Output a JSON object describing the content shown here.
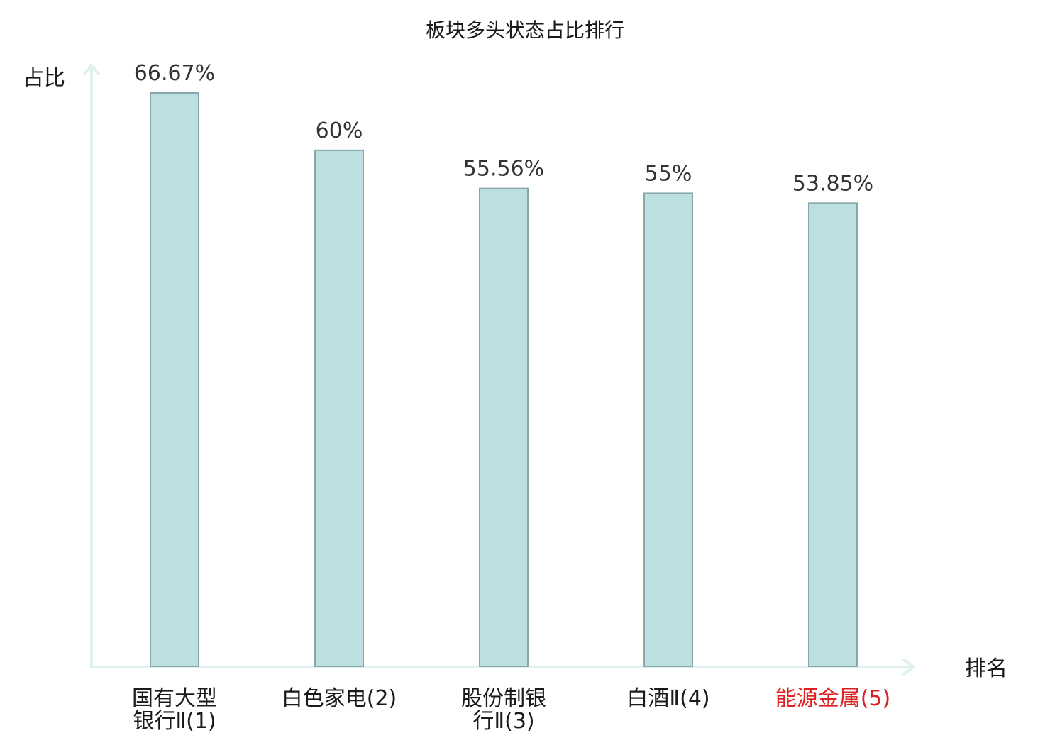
{
  "chart_data": {
    "type": "bar",
    "title": "板块多头状态占比排行",
    "ylabel": "占比",
    "xlabel": "排名",
    "ylim": [
      0,
      70
    ],
    "grid": false,
    "categories": [
      [
        "国有大型",
        "银行Ⅱ(1)"
      ],
      [
        "白色家电(2)"
      ],
      [
        "股份制银",
        "行Ⅱ(3)"
      ],
      [
        "白酒Ⅱ(4)"
      ],
      [
        "能源金属(5)"
      ]
    ],
    "values": [
      66.67,
      60,
      55.56,
      55,
      53.85
    ],
    "value_labels": [
      "66.67%",
      "60%",
      "55.56%",
      "55%",
      "53.85%"
    ],
    "highlight_index": 4,
    "colors": {
      "bar_fill": "#bce0e2",
      "bar_stroke": "#87a7a8",
      "axis": "#dff1ef",
      "highlight_text": "#e02020"
    }
  }
}
